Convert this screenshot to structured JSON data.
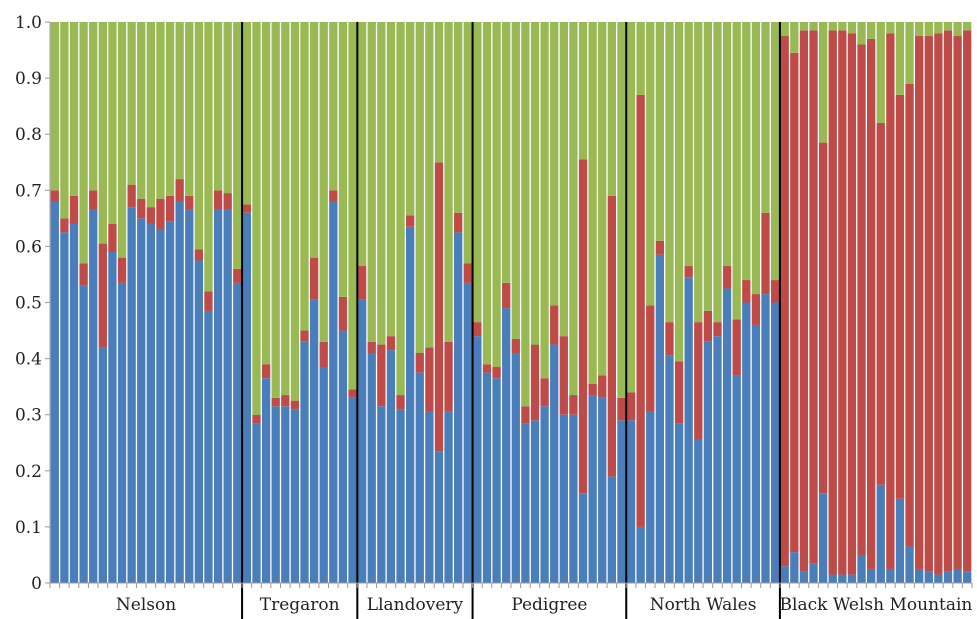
{
  "chart_data": {
    "type": "stacked-bar",
    "ylim": [
      0,
      1.0
    ],
    "yticks": [
      "0",
      "0.1",
      "0.2",
      "0.3",
      "0.4",
      "0.5",
      "0.6",
      "0.7",
      "0.8",
      "0.9",
      "1.0"
    ],
    "colors": {
      "blue": "#4A7EBB",
      "red": "#BE4B48",
      "green": "#98B954",
      "divider": "#000000"
    },
    "groups": [
      {
        "name": "Nelson",
        "bars": [
          [
            0.68,
            0.02
          ],
          [
            0.625,
            0.025
          ],
          [
            0.64,
            0.05
          ],
          [
            0.53,
            0.04
          ],
          [
            0.665,
            0.035
          ],
          [
            0.42,
            0.185
          ],
          [
            0.59,
            0.05
          ],
          [
            0.535,
            0.045
          ],
          [
            0.67,
            0.04
          ],
          [
            0.65,
            0.035
          ],
          [
            0.64,
            0.03
          ],
          [
            0.63,
            0.055
          ],
          [
            0.645,
            0.045
          ],
          [
            0.68,
            0.04
          ],
          [
            0.665,
            0.025
          ],
          [
            0.575,
            0.02
          ],
          [
            0.485,
            0.035
          ],
          [
            0.665,
            0.035
          ],
          [
            0.665,
            0.03
          ],
          [
            0.535,
            0.025
          ]
        ]
      },
      {
        "name": "Tregaron",
        "bars": [
          [
            0.66,
            0.015
          ],
          [
            0.285,
            0.015
          ],
          [
            0.365,
            0.025
          ],
          [
            0.315,
            0.015
          ],
          [
            0.315,
            0.02
          ],
          [
            0.31,
            0.015
          ],
          [
            0.43,
            0.02
          ],
          [
            0.505,
            0.075
          ],
          [
            0.385,
            0.045
          ],
          [
            0.68,
            0.02
          ],
          [
            0.45,
            0.06
          ],
          [
            0.33,
            0.015
          ]
        ]
      },
      {
        "name": "Llandovery",
        "bars": [
          [
            0.505,
            0.06
          ],
          [
            0.41,
            0.02
          ],
          [
            0.315,
            0.11
          ],
          [
            0.415,
            0.025
          ],
          [
            0.31,
            0.025
          ],
          [
            0.635,
            0.02
          ],
          [
            0.375,
            0.035
          ],
          [
            0.305,
            0.115
          ],
          [
            0.235,
            0.515
          ],
          [
            0.305,
            0.125
          ],
          [
            0.625,
            0.035
          ],
          [
            0.535,
            0.035
          ]
        ]
      },
      {
        "name": "Pedigree",
        "bars": [
          [
            0.44,
            0.025
          ],
          [
            0.375,
            0.015
          ],
          [
            0.365,
            0.02
          ],
          [
            0.49,
            0.045
          ],
          [
            0.41,
            0.025
          ],
          [
            0.285,
            0.03
          ],
          [
            0.29,
            0.135
          ],
          [
            0.315,
            0.05
          ],
          [
            0.425,
            0.07
          ],
          [
            0.3,
            0.14
          ],
          [
            0.3,
            0.035
          ],
          [
            0.16,
            0.595
          ],
          [
            0.335,
            0.02
          ],
          [
            0.33,
            0.04
          ],
          [
            0.19,
            0.5
          ],
          [
            0.29,
            0.04
          ]
        ]
      },
      {
        "name": "North Wales",
        "bars": [
          [
            0.29,
            0.05
          ],
          [
            0.1,
            0.77
          ],
          [
            0.305,
            0.19
          ],
          [
            0.585,
            0.025
          ],
          [
            0.405,
            0.06
          ],
          [
            0.285,
            0.11
          ],
          [
            0.545,
            0.02
          ],
          [
            0.255,
            0.21
          ],
          [
            0.43,
            0.055
          ],
          [
            0.44,
            0.025
          ],
          [
            0.525,
            0.04
          ],
          [
            0.37,
            0.1
          ],
          [
            0.5,
            0.04
          ],
          [
            0.46,
            0.055
          ],
          [
            0.515,
            0.145
          ],
          [
            0.5,
            0.04
          ]
        ]
      },
      {
        "name": "Black Welsh Mountain",
        "bars": [
          [
            0.03,
            0.945
          ],
          [
            0.055,
            0.89
          ],
          [
            0.02,
            0.965
          ],
          [
            0.035,
            0.95
          ],
          [
            0.16,
            0.625
          ],
          [
            0.015,
            0.97
          ],
          [
            0.015,
            0.97
          ],
          [
            0.015,
            0.965
          ],
          [
            0.05,
            0.91
          ],
          [
            0.025,
            0.945
          ],
          [
            0.175,
            0.645
          ],
          [
            0.025,
            0.955
          ],
          [
            0.15,
            0.72
          ],
          [
            0.065,
            0.825
          ],
          [
            0.025,
            0.95
          ],
          [
            0.02,
            0.955
          ],
          [
            0.015,
            0.965
          ],
          [
            0.02,
            0.965
          ],
          [
            0.025,
            0.95
          ],
          [
            0.02,
            0.965
          ]
        ]
      }
    ]
  }
}
